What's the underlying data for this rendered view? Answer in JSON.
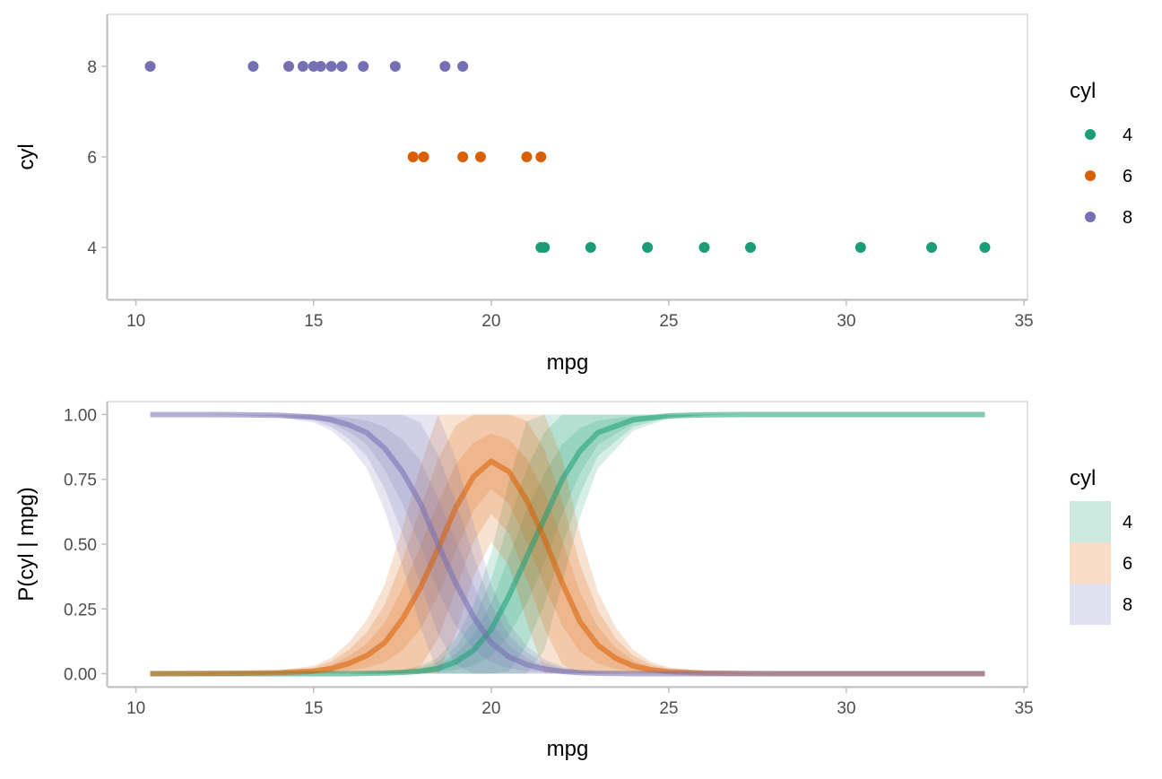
{
  "chart_data": [
    {
      "type": "scatter",
      "xlabel": "mpg",
      "ylabel": "cyl",
      "xlim": [
        9.2,
        35.1
      ],
      "ylim": [
        2.85,
        9.15
      ],
      "x_ticks": [
        "10",
        "15",
        "20",
        "25",
        "30",
        "35"
      ],
      "y_ticks": [
        "4",
        "6",
        "8"
      ],
      "legend": {
        "title": "cyl",
        "position": "right",
        "entries": [
          "4",
          "6",
          "8"
        ]
      },
      "series": [
        {
          "name": "4",
          "color": "#1b9e77",
          "points": [
            [
              21.4,
              4
            ],
            [
              21.5,
              4
            ],
            [
              22.8,
              4
            ],
            [
              24.4,
              4
            ],
            [
              26.0,
              4
            ],
            [
              27.3,
              4
            ],
            [
              30.4,
              4
            ],
            [
              32.4,
              4
            ],
            [
              33.9,
              4
            ]
          ]
        },
        {
          "name": "6",
          "color": "#d95f02",
          "points": [
            [
              17.8,
              6
            ],
            [
              18.1,
              6
            ],
            [
              19.2,
              6
            ],
            [
              19.7,
              6
            ],
            [
              21.0,
              6
            ],
            [
              21.4,
              6
            ]
          ]
        },
        {
          "name": "8",
          "color": "#7570b3",
          "points": [
            [
              10.4,
              8
            ],
            [
              13.3,
              8
            ],
            [
              14.3,
              8
            ],
            [
              14.7,
              8
            ],
            [
              15.0,
              8
            ],
            [
              15.2,
              8
            ],
            [
              15.5,
              8
            ],
            [
              15.8,
              8
            ],
            [
              16.4,
              8
            ],
            [
              17.3,
              8
            ],
            [
              18.7,
              8
            ],
            [
              19.2,
              8
            ]
          ]
        }
      ]
    },
    {
      "type": "line",
      "xlabel": "mpg",
      "ylabel": "P(cyl | mpg)",
      "xlim": [
        9.2,
        35.1
      ],
      "ylim": [
        -0.05,
        1.05
      ],
      "x_ticks": [
        "10",
        "15",
        "20",
        "25",
        "30",
        "35"
      ],
      "y_ticks": [
        "0.00",
        "0.25",
        "0.50",
        "0.75",
        "1.00"
      ],
      "legend": {
        "title": "cyl",
        "position": "right",
        "entries": [
          "4",
          "6",
          "8"
        ]
      },
      "band_levels": [
        0.5,
        0.8,
        0.95
      ],
      "series": [
        {
          "name": "4",
          "color": "#1b9e77",
          "x": [
            10.4,
            12,
            13,
            14,
            15,
            16,
            17,
            17.5,
            18,
            18.5,
            19,
            19.5,
            20,
            20.5,
            21,
            21.5,
            22,
            22.5,
            23,
            24,
            25,
            26,
            27,
            28,
            30,
            32,
            33.9
          ],
          "mean": [
            0,
            0,
            0,
            0,
            0,
            0,
            0.003,
            0.005,
            0.01,
            0.02,
            0.045,
            0.09,
            0.17,
            0.3,
            0.45,
            0.6,
            0.75,
            0.86,
            0.93,
            0.98,
            0.995,
            0.999,
            1,
            1,
            1,
            1,
            1
          ]
        },
        {
          "name": "6",
          "color": "#d95f02",
          "x": [
            10.4,
            12,
            13,
            14,
            15,
            15.5,
            16,
            16.5,
            17,
            17.5,
            18,
            18.5,
            19,
            19.5,
            20,
            20.5,
            21,
            21.5,
            22,
            22.5,
            23,
            23.5,
            24,
            24.5,
            25,
            26,
            27,
            28,
            30,
            32,
            33.9
          ],
          "mean": [
            0,
            0.001,
            0.002,
            0.004,
            0.01,
            0.02,
            0.04,
            0.07,
            0.12,
            0.21,
            0.33,
            0.48,
            0.64,
            0.76,
            0.82,
            0.78,
            0.67,
            0.52,
            0.35,
            0.2,
            0.11,
            0.06,
            0.03,
            0.015,
            0.008,
            0.003,
            0.001,
            0,
            0,
            0,
            0
          ]
        },
        {
          "name": "8",
          "color": "#7570b3",
          "x": [
            10.4,
            12,
            13,
            14,
            15,
            15.5,
            16,
            16.5,
            17,
            17.5,
            18,
            18.5,
            19,
            19.5,
            20,
            20.5,
            21,
            21.5,
            22,
            22.5,
            23,
            24,
            25,
            26,
            27,
            28,
            30,
            32,
            33.9
          ],
          "mean": [
            1,
            1,
            0.999,
            0.997,
            0.99,
            0.98,
            0.96,
            0.93,
            0.87,
            0.78,
            0.66,
            0.5,
            0.35,
            0.22,
            0.12,
            0.065,
            0.035,
            0.018,
            0.009,
            0.004,
            0.002,
            0,
            0,
            0,
            0,
            0,
            0,
            0,
            0
          ]
        }
      ]
    }
  ]
}
